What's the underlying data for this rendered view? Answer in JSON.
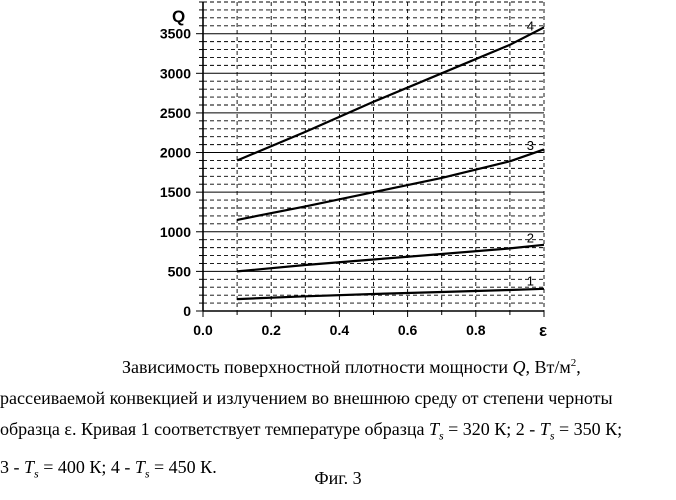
{
  "chart_data": {
    "type": "line",
    "xlabel": "ε",
    "ylabel": "Q",
    "xlim": [
      0.0,
      1.0
    ],
    "ylim": [
      0,
      3900
    ],
    "x_ticks": [
      "0.0",
      "0.2",
      "0.4",
      "0.6",
      "0.8"
    ],
    "y_ticks": [
      "0",
      "500",
      "1000",
      "1500",
      "2000",
      "2500",
      "3000",
      "3500"
    ],
    "grid": true,
    "series": [
      {
        "name": "1",
        "x": [
          0.1,
          0.3,
          0.5,
          0.7,
          0.9,
          1.0
        ],
        "y": [
          150,
          185,
          215,
          240,
          265,
          280
        ]
      },
      {
        "name": "2",
        "x": [
          0.1,
          0.3,
          0.5,
          0.7,
          0.9,
          1.0
        ],
        "y": [
          500,
          580,
          650,
          720,
          790,
          835
        ]
      },
      {
        "name": "3",
        "x": [
          0.1,
          0.3,
          0.5,
          0.7,
          0.9,
          1.0
        ],
        "y": [
          1150,
          1320,
          1500,
          1680,
          1890,
          2040
        ]
      },
      {
        "name": "4",
        "x": [
          0.1,
          0.3,
          0.5,
          0.7,
          0.9,
          1.0
        ],
        "y": [
          1900,
          2260,
          2640,
          3000,
          3360,
          3580
        ]
      }
    ]
  },
  "caption": {
    "line1_pre": "Зависимость поверхностной плотности мощности",
    "line1_var": "Q",
    "line1_unit": ", Вт/м",
    "line1_sup": "2",
    "line1_post": ",",
    "line2": "рассеиваемой конвекцией и излучением во внешнюю среду от степени черноты",
    "line3_pre": "образца ε. Кривая 1 соответствует температуре образца",
    "ts_var": "T",
    "ts_sub": "s",
    "line3_t1": " = 320 К;   2 - ",
    "line3_t2": " = 350 К;",
    "line4_pre": "3 - ",
    "line4_t1": " = 400 К; 4 - ",
    "line4_t2": " = 450 К."
  },
  "figure_label": "Фиг.   3"
}
